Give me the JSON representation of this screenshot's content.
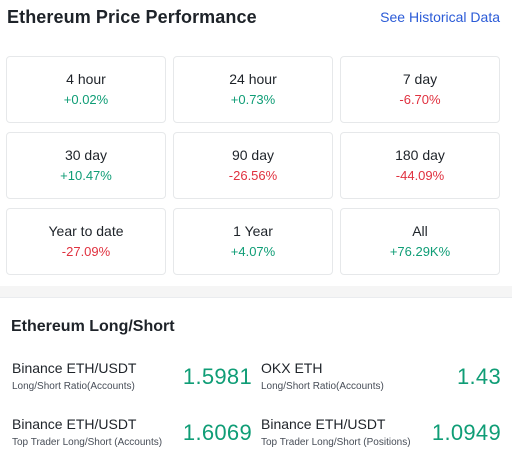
{
  "performance": {
    "title": "Ethereum Price Performance",
    "historical_link": "See Historical Data",
    "cells": [
      {
        "label": "4 hour",
        "value": "+0.02%",
        "trend": "pos"
      },
      {
        "label": "24 hour",
        "value": "+0.73%",
        "trend": "pos"
      },
      {
        "label": "7 day",
        "value": "-6.70%",
        "trend": "neg"
      },
      {
        "label": "30 day",
        "value": "+10.47%",
        "trend": "pos"
      },
      {
        "label": "90 day",
        "value": "-26.56%",
        "trend": "neg"
      },
      {
        "label": "180 day",
        "value": "-44.09%",
        "trend": "neg"
      },
      {
        "label": "Year to date",
        "value": "-27.09%",
        "trend": "neg"
      },
      {
        "label": "1 Year",
        "value": "+4.07%",
        "trend": "pos"
      },
      {
        "label": "All",
        "value": "+76.29K%",
        "trend": "pos"
      }
    ]
  },
  "long_short": {
    "title": "Ethereum Long/Short",
    "metrics": [
      {
        "name": "Binance ETH/USDT",
        "sub": "Long/Short Ratio(Accounts)",
        "value": "1.5981"
      },
      {
        "name": "OKX ETH",
        "sub": "Long/Short Ratio(Accounts)",
        "value": "1.43"
      },
      {
        "name": "Binance ETH/USDT",
        "sub": "Top Trader Long/Short (Accounts)",
        "value": "1.6069"
      },
      {
        "name": "Binance ETH/USDT",
        "sub": "Top Trader Long/Short (Positions)",
        "value": "1.0949"
      }
    ]
  },
  "colors": {
    "positive": "#0f9d76",
    "negative": "#e0313f",
    "link": "#2b5bd7"
  }
}
